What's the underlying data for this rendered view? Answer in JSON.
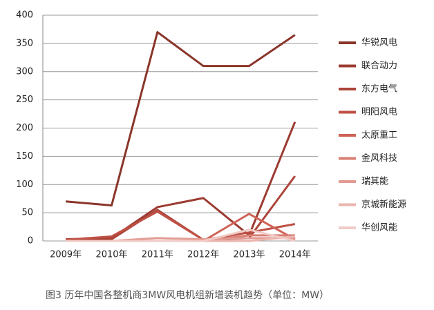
{
  "chart_data": {
    "type": "line",
    "caption": "图3 历年中国各整机商3MW风电机组新增装机趋势（单位：MW）",
    "categories": [
      "2009年",
      "2010年",
      "2011年",
      "2012年",
      "2013年",
      "2014年"
    ],
    "series": [
      {
        "name": "华锐风电",
        "color": "#8a3529",
        "values": [
          70,
          63,
          370,
          310,
          310,
          365
        ]
      },
      {
        "name": "联合动力",
        "color": "#9c3b31",
        "values": [
          3,
          5,
          60,
          76,
          10,
          211
        ]
      },
      {
        "name": "东方电气",
        "color": "#ad4439",
        "values": [
          2,
          3,
          55,
          2,
          5,
          115
        ]
      },
      {
        "name": "明阳风电",
        "color": "#bf5045",
        "values": [
          2,
          8,
          52,
          2,
          15,
          30
        ]
      },
      {
        "name": "太原重工",
        "color": "#cf6256",
        "values": [
          0,
          0,
          0,
          0,
          48,
          3
        ]
      },
      {
        "name": "金风科技",
        "color": "#d97e73",
        "values": [
          0,
          0,
          0,
          0,
          10,
          10
        ]
      },
      {
        "name": "瑞其能",
        "color": "#e29b92",
        "values": [
          0,
          0,
          5,
          3,
          5,
          5
        ]
      },
      {
        "name": "京城新能源",
        "color": "#eab5ae",
        "values": [
          0,
          0,
          0,
          0,
          0,
          8
        ]
      },
      {
        "name": "华创风能",
        "color": "#f1ccc7",
        "values": [
          0,
          0,
          0,
          0,
          20,
          0
        ]
      }
    ],
    "ylim": [
      0,
      400
    ],
    "yticks": [
      0,
      50,
      100,
      150,
      200,
      250,
      300,
      350,
      400
    ],
    "grid": true
  }
}
